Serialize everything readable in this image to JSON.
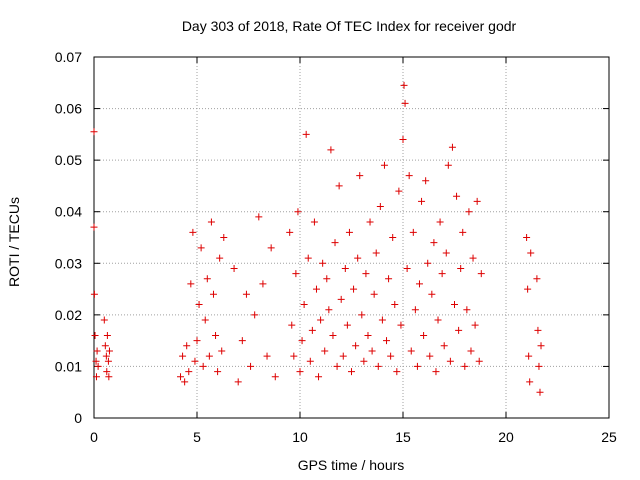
{
  "colors": {
    "marker": "#dd0000",
    "axis": "#000000",
    "grid": "#a0a0a0"
  },
  "chart_data": {
    "type": "scatter",
    "title": "Day 303 of 2018, Rate Of TEC Index for receiver godr",
    "xlabel": "GPS time / hours",
    "ylabel": "ROTI / TECUs",
    "xlim": [
      0,
      25
    ],
    "ylim": [
      0,
      0.07
    ],
    "xticks": [
      0,
      5,
      10,
      15,
      20,
      25
    ],
    "yticks": [
      0,
      0.01,
      0.02,
      0.03,
      0.04,
      0.05,
      0.06,
      0.07
    ],
    "xtick_labels": [
      "0",
      "5",
      "10",
      "15",
      "20",
      "25"
    ],
    "ytick_labels": [
      "0",
      "0.01",
      "0.02",
      "0.03",
      "0.04",
      "0.05",
      "0.06",
      "0.07"
    ],
    "grid": true,
    "marker": "+",
    "series": [
      {
        "name": "ROTI",
        "x": [
          0.0,
          0.0,
          0.02,
          0.05,
          0.1,
          0.12,
          0.15,
          0.2,
          0.5,
          0.55,
          0.6,
          0.62,
          0.65,
          0.7,
          0.72,
          0.75,
          4.2,
          4.3,
          4.4,
          4.5,
          4.6,
          4.7,
          4.8,
          4.9,
          5.0,
          5.1,
          5.2,
          5.3,
          5.4,
          5.5,
          5.6,
          5.7,
          5.8,
          5.9,
          6.0,
          6.1,
          6.2,
          6.3,
          6.8,
          7.0,
          7.2,
          7.4,
          7.6,
          7.8,
          8.0,
          8.2,
          8.4,
          8.6,
          8.8,
          9.5,
          9.6,
          9.7,
          9.8,
          9.9,
          10.0,
          10.1,
          10.2,
          10.3,
          10.4,
          10.5,
          10.6,
          10.7,
          10.8,
          10.9,
          11.0,
          11.1,
          11.2,
          11.3,
          11.4,
          11.5,
          11.6,
          11.7,
          11.8,
          11.9,
          12.0,
          12.1,
          12.2,
          12.3,
          12.4,
          12.5,
          12.6,
          12.7,
          12.8,
          12.9,
          13.0,
          13.1,
          13.2,
          13.3,
          13.4,
          13.5,
          13.6,
          13.7,
          13.8,
          13.9,
          14.0,
          14.1,
          14.2,
          14.3,
          14.4,
          14.5,
          14.6,
          14.7,
          14.8,
          14.9,
          15.0,
          15.05,
          15.1,
          15.2,
          15.3,
          15.4,
          15.5,
          15.6,
          15.7,
          15.8,
          15.9,
          16.0,
          16.1,
          16.2,
          16.3,
          16.4,
          16.5,
          16.6,
          16.7,
          16.8,
          16.9,
          17.0,
          17.1,
          17.2,
          17.3,
          17.4,
          17.5,
          17.6,
          17.7,
          17.8,
          17.9,
          18.0,
          18.1,
          18.2,
          18.3,
          18.4,
          18.5,
          18.6,
          18.7,
          18.8,
          21.0,
          21.05,
          21.1,
          21.15,
          21.2,
          21.5,
          21.55,
          21.6,
          21.65,
          21.7
        ],
        "y": [
          0.0555,
          0.037,
          0.024,
          0.016,
          0.011,
          0.008,
          0.013,
          0.01,
          0.019,
          0.014,
          0.012,
          0.009,
          0.016,
          0.011,
          0.008,
          0.013,
          0.008,
          0.012,
          0.007,
          0.014,
          0.009,
          0.026,
          0.036,
          0.011,
          0.015,
          0.022,
          0.033,
          0.01,
          0.019,
          0.027,
          0.012,
          0.038,
          0.024,
          0.016,
          0.009,
          0.031,
          0.013,
          0.035,
          0.029,
          0.007,
          0.015,
          0.024,
          0.01,
          0.02,
          0.039,
          0.026,
          0.012,
          0.033,
          0.008,
          0.036,
          0.018,
          0.012,
          0.028,
          0.04,
          0.009,
          0.015,
          0.022,
          0.055,
          0.031,
          0.011,
          0.017,
          0.038,
          0.025,
          0.008,
          0.019,
          0.03,
          0.013,
          0.027,
          0.021,
          0.052,
          0.016,
          0.034,
          0.01,
          0.045,
          0.023,
          0.012,
          0.029,
          0.018,
          0.036,
          0.009,
          0.025,
          0.014,
          0.031,
          0.047,
          0.02,
          0.011,
          0.028,
          0.016,
          0.038,
          0.013,
          0.024,
          0.032,
          0.01,
          0.041,
          0.019,
          0.049,
          0.015,
          0.027,
          0.012,
          0.035,
          0.022,
          0.009,
          0.044,
          0.018,
          0.054,
          0.0645,
          0.061,
          0.029,
          0.047,
          0.013,
          0.036,
          0.021,
          0.01,
          0.026,
          0.042,
          0.016,
          0.046,
          0.03,
          0.012,
          0.024,
          0.034,
          0.009,
          0.019,
          0.038,
          0.028,
          0.014,
          0.032,
          0.049,
          0.011,
          0.0525,
          0.022,
          0.043,
          0.017,
          0.029,
          0.036,
          0.01,
          0.021,
          0.04,
          0.013,
          0.031,
          0.018,
          0.042,
          0.011,
          0.028,
          0.035,
          0.025,
          0.012,
          0.007,
          0.032,
          0.027,
          0.017,
          0.01,
          0.005,
          0.014
        ]
      }
    ]
  }
}
